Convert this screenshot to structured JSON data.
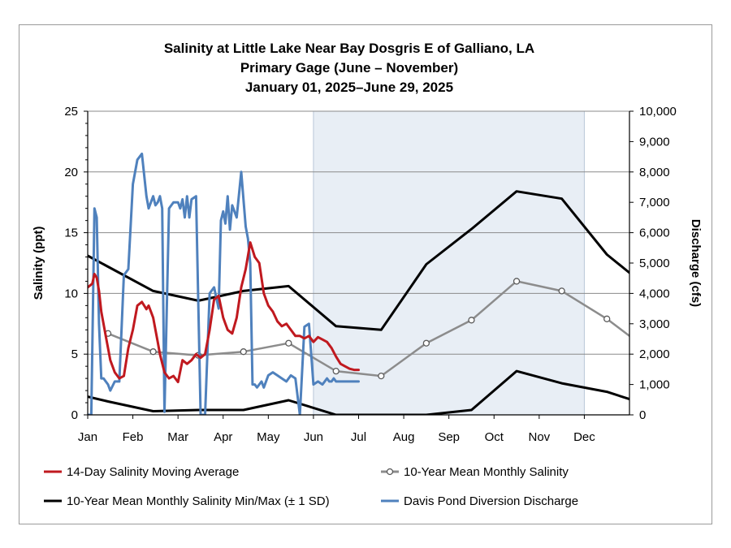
{
  "chart_data": {
    "type": "line",
    "title": [
      "Salinity at Little Lake Near Bay Dosgris E of Galliano, LA",
      "Primary Gage (June – November)",
      "January 01, 2025–June 29, 2025"
    ],
    "ylabel": "Salinity (ppt)",
    "y2label": "Discharge (cfs)",
    "ylim": [
      0,
      25
    ],
    "y2lim": [
      0,
      10000
    ],
    "yticks": [
      "0",
      "5",
      "10",
      "15",
      "20",
      "25"
    ],
    "y2ticks": [
      "0",
      "1,000",
      "2,000",
      "3,000",
      "4,000",
      "5,000",
      "6,000",
      "7,000",
      "8,000",
      "9,000",
      "10,000"
    ],
    "xticks": [
      "Jan",
      "Feb",
      "Mar",
      "Apr",
      "May",
      "Jun",
      "Jul",
      "Aug",
      "Sep",
      "Oct",
      "Nov",
      "Dec"
    ],
    "xlim": [
      0,
      12
    ],
    "grid": true,
    "highlight_period": {
      "label": "Primary Gage (June – November)",
      "start": 5,
      "end": 11,
      "color": "#e8eef5"
    },
    "series": [
      {
        "name": "14-Day Salinity Moving Average",
        "axis": "left",
        "color": "#c0191f",
        "x": [
          0.0,
          0.1,
          0.15,
          0.2,
          0.25,
          0.3,
          0.4,
          0.5,
          0.6,
          0.7,
          0.8,
          0.9,
          1.0,
          1.1,
          1.2,
          1.3,
          1.35,
          1.4,
          1.45,
          1.5,
          1.55,
          1.6,
          1.7,
          1.8,
          1.9,
          2.0,
          2.1,
          2.2,
          2.3,
          2.4,
          2.5,
          2.6,
          2.7,
          2.8,
          2.9,
          3.0,
          3.05,
          3.1,
          3.2,
          3.3,
          3.4,
          3.5,
          3.6,
          3.7,
          3.8,
          3.9,
          4.0,
          4.1,
          4.2,
          4.3,
          4.4,
          4.5,
          4.6,
          4.7,
          4.8,
          4.9,
          5.0,
          5.1,
          5.2,
          5.3,
          5.4,
          5.5,
          5.6,
          5.7,
          5.8,
          5.9,
          6.0
        ],
        "values": [
          10.5,
          10.8,
          11.6,
          11.3,
          10.2,
          8.5,
          6.5,
          4.5,
          3.5,
          3.0,
          3.2,
          5.5,
          7.0,
          9.0,
          9.3,
          8.7,
          9.0,
          8.5,
          8.0,
          7.0,
          6.0,
          5.0,
          3.5,
          3.0,
          3.2,
          2.7,
          4.5,
          4.2,
          4.5,
          5.0,
          4.7,
          5.0,
          7.0,
          9.5,
          9.8,
          8.0,
          7.5,
          7.0,
          6.7,
          8.0,
          10.5,
          12.0,
          14.2,
          13.0,
          12.5,
          10.0,
          9.0,
          8.5,
          7.7,
          7.3,
          7.5,
          7.0,
          6.5,
          6.5,
          6.3,
          6.5,
          6.0,
          6.4,
          6.2,
          6.0,
          5.5,
          4.8,
          4.2,
          4.0,
          3.8,
          3.7,
          3.7
        ],
        "width": 3
      },
      {
        "name": "10-Year Mean Monthly Salinity",
        "axis": "left",
        "color": "#8c8c8c",
        "markers": true,
        "x": [
          0.45,
          1.45,
          2.45,
          3.45,
          4.45,
          5.5,
          6.5,
          7.5,
          8.5,
          9.5,
          10.5,
          11.5,
          12.0
        ],
        "values": [
          6.7,
          5.2,
          4.9,
          5.2,
          5.9,
          3.6,
          3.2,
          5.9,
          7.8,
          11.0,
          10.2,
          7.9,
          6.5
        ],
        "marker_count": 12,
        "width": 2.5
      },
      {
        "name": "10-Year Mean Monthly Salinity Min/Max (± 1 SD)",
        "axis": "left",
        "color": "#000000",
        "x": [
          0.0,
          0.45,
          1.45,
          2.45,
          3.45,
          4.45,
          5.5,
          6.5,
          7.5,
          8.5,
          9.5,
          10.5,
          11.5,
          12.0
        ],
        "values": [
          13.1,
          12.2,
          10.2,
          9.4,
          10.2,
          10.6,
          7.3,
          7.0,
          12.4,
          15.3,
          18.4,
          17.8,
          13.2,
          11.7
        ],
        "width": 3
      },
      {
        "name": "10-Year Mean Monthly Salinity Min/Max (± 1 SD) lower",
        "axis": "left",
        "color": "#000000",
        "legend": false,
        "x": [
          0.0,
          0.45,
          1.45,
          2.45,
          3.45,
          4.45,
          5.5,
          6.5,
          7.5,
          8.5,
          9.5,
          10.5,
          11.5,
          12.0
        ],
        "values": [
          1.5,
          1.1,
          0.3,
          0.4,
          0.4,
          1.2,
          0.0,
          0.0,
          0.0,
          0.4,
          3.6,
          2.6,
          1.9,
          1.3
        ],
        "width": 3
      },
      {
        "name": "Davis Pond Diversion Discharge",
        "axis": "right",
        "color": "#4f81bd",
        "x": [
          0.0,
          0.08,
          0.15,
          0.2,
          0.25,
          0.3,
          0.35,
          0.45,
          0.5,
          0.6,
          0.7,
          0.8,
          0.9,
          1.0,
          1.1,
          1.2,
          1.3,
          1.35,
          1.4,
          1.45,
          1.5,
          1.55,
          1.6,
          1.65,
          1.7,
          1.8,
          1.9,
          2.0,
          2.05,
          2.1,
          2.15,
          2.2,
          2.25,
          2.3,
          2.4,
          2.5,
          2.6,
          2.7,
          2.8,
          2.9,
          2.95,
          3.0,
          3.05,
          3.1,
          3.15,
          3.2,
          3.3,
          3.4,
          3.5,
          3.55,
          3.6,
          3.65,
          3.7,
          3.75,
          3.8,
          3.85,
          3.9,
          4.0,
          4.1,
          4.2,
          4.3,
          4.4,
          4.5,
          4.6,
          4.7,
          4.8,
          4.9,
          5.0,
          5.1,
          5.2,
          5.3,
          5.35,
          5.4,
          5.45,
          5.5,
          5.55,
          5.6,
          5.7,
          5.8,
          5.9,
          6.0
        ],
        "values": [
          0,
          0,
          6800,
          6500,
          3000,
          1200,
          1200,
          1000,
          800,
          1100,
          1100,
          4600,
          4800,
          7600,
          8400,
          8600,
          7200,
          6800,
          7000,
          7200,
          6900,
          7000,
          7200,
          6800,
          100,
          6800,
          7000,
          7000,
          6800,
          7100,
          6500,
          7200,
          6500,
          7100,
          7200,
          0,
          0,
          4000,
          4200,
          3500,
          6400,
          6700,
          6300,
          7200,
          6100,
          6900,
          6500,
          8000,
          6200,
          5800,
          5000,
          1000,
          1000,
          900,
          1000,
          1100,
          900,
          1300,
          1400,
          1300,
          1200,
          1100,
          1300,
          1200,
          0,
          2900,
          3000,
          1000,
          1100,
          1000,
          1200,
          1100,
          1100,
          1200,
          1100,
          1100,
          1100,
          1100,
          1100,
          1100,
          1100
        ],
        "width": 3
      }
    ],
    "legend": {
      "placement": "bottom",
      "items": [
        "14-Day Salinity Moving Average",
        "10-Year Mean Monthly Salinity",
        "10-Year Mean Monthly Salinity Min/Max (± 1 SD)",
        "Davis Pond Diversion Discharge"
      ]
    }
  }
}
